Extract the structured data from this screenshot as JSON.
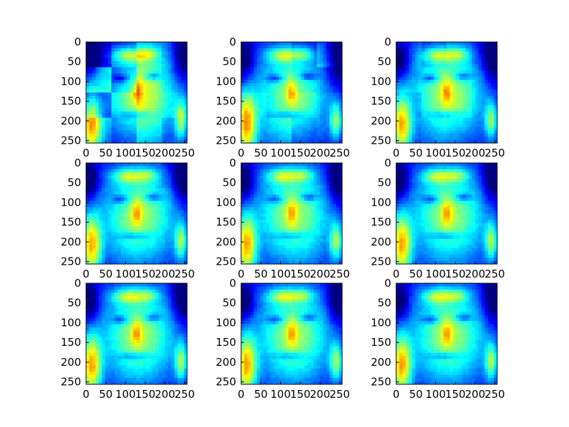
{
  "chart_data": {
    "type": "heatmap",
    "layout": "3x3 grid",
    "colormap": "jet",
    "grid": false,
    "legend": "none",
    "xlim": [
      0,
      256
    ],
    "ylim": [
      256,
      0
    ],
    "xticks": [
      0,
      50,
      100,
      150,
      200,
      250
    ],
    "yticks": [
      0,
      50,
      100,
      150,
      200,
      250
    ],
    "xtick_labels": [
      "0",
      "50",
      "100",
      "150",
      "200",
      "250"
    ],
    "ytick_labels": [
      "0",
      "50",
      "100",
      "150",
      "200",
      "250"
    ],
    "title": "",
    "xlabel": "",
    "ylabel": "",
    "panels": [
      {
        "blockiness": 4
      },
      {
        "blockiness": 2
      },
      {
        "blockiness": 1
      },
      {
        "blockiness": 0.4
      },
      {
        "blockiness": 0.2
      },
      {
        "blockiness": 0.1
      },
      {
        "blockiness": 0.05
      },
      {
        "blockiness": 0.02
      },
      {
        "blockiness": 0
      }
    ]
  }
}
